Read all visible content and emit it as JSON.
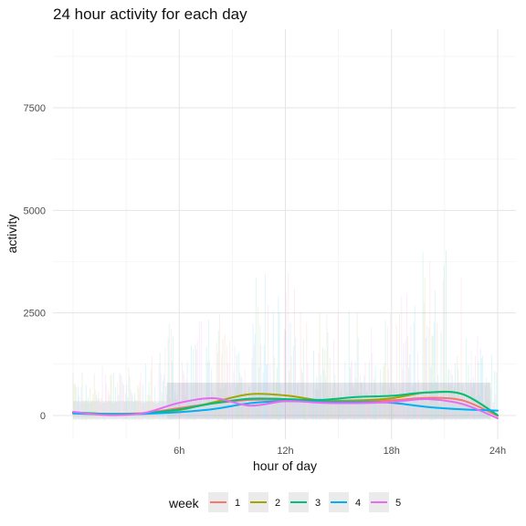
{
  "chart_data": {
    "type": "line",
    "title": "24 hour activity for each day",
    "xlabel": "hour of day",
    "ylabel": "activity",
    "x_ticks": [
      {
        "value": 6,
        "label": "6h"
      },
      {
        "value": 12,
        "label": "12h"
      },
      {
        "value": 18,
        "label": "18h"
      },
      {
        "value": 24,
        "label": "24h"
      }
    ],
    "y_ticks": [
      {
        "value": 0,
        "label": "0"
      },
      {
        "value": 2500,
        "label": "2500"
      },
      {
        "value": 5000,
        "label": "5000"
      },
      {
        "value": 7500,
        "label": "7500"
      }
    ],
    "xlim": [
      0,
      24.3
    ],
    "ylim": [
      -550,
      9300
    ],
    "grid": true,
    "legend": {
      "title": "week",
      "placement": "bottom"
    },
    "x": [
      0,
      2,
      4,
      6,
      8,
      10,
      12,
      14,
      16,
      18,
      20,
      22,
      24
    ],
    "series": [
      {
        "name": "1",
        "color": "#F8766D",
        "values": [
          60,
          40,
          60,
          180,
          300,
          380,
          380,
          360,
          360,
          370,
          430,
          370,
          -10
        ]
      },
      {
        "name": "2",
        "color": "#A3A500",
        "values": [
          70,
          40,
          50,
          130,
          330,
          520,
          490,
          370,
          370,
          420,
          560,
          520,
          0
        ]
      },
      {
        "name": "3",
        "color": "#00BF7D",
        "values": [
          80,
          40,
          50,
          150,
          300,
          410,
          400,
          380,
          450,
          480,
          560,
          520,
          10
        ]
      },
      {
        "name": "4",
        "color": "#00B0F6",
        "values": [
          50,
          30,
          40,
          80,
          160,
          300,
          350,
          330,
          330,
          310,
          210,
          150,
          120
        ]
      },
      {
        "name": "5",
        "color": "#E76BF3",
        "values": [
          90,
          10,
          60,
          310,
          420,
          240,
          350,
          310,
          300,
          330,
          400,
          280,
          -70
        ]
      }
    ]
  }
}
